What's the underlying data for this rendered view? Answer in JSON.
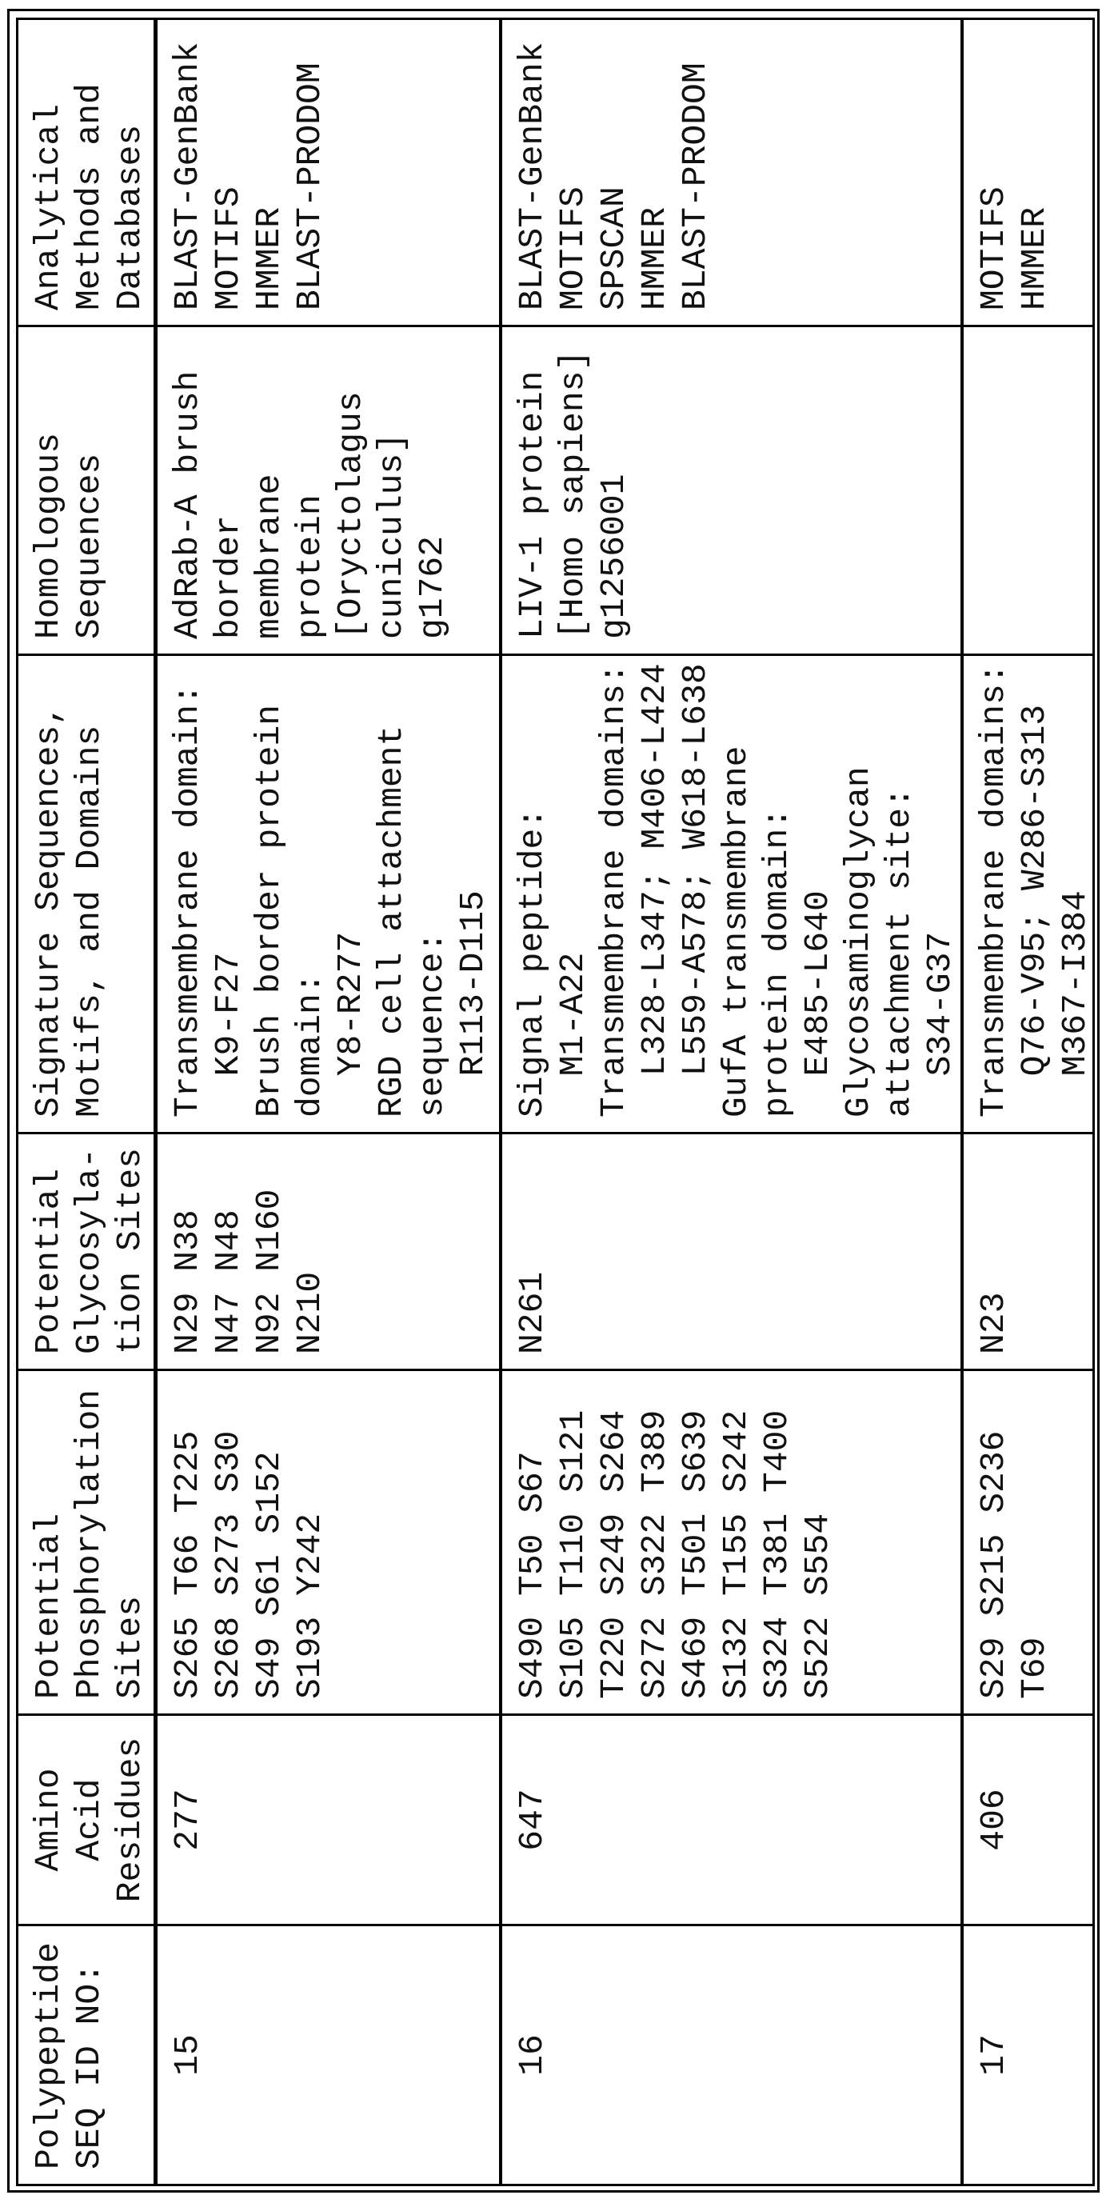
{
  "table": {
    "headers": [
      "Polypeptide\nSEQ ID NO:",
      "Amino\nAcid\nResidues",
      "Potential\nPhosphorylation\nSites",
      "Potential\nGlycosyla-\ntion Sites",
      "Signature Sequences,\nMotifs, and Domains",
      "Homologous\nSequences",
      "Analytical\nMethods and\nDatabases"
    ],
    "rows": [
      {
        "seq_id": "15",
        "residues": "277",
        "phosphorylation": "S265 T66 T225\nS268 S273 S30\nS49 S61 S152\nS193 Y242",
        "glycosylation": "N29 N38\nN47 N48\nN92 N160\nN210",
        "signatures": "Transmembrane domain:\n  K9-F27\nBrush border protein\ndomain:\n  Y8-R277\nRGD cell attachment\nsequence:\n  R113-D115",
        "homologous": "AdRab-A brush\nborder\nmembrane\nprotein\n[Oryctolagus\ncuniculus]\ng1762",
        "methods": "BLAST-GenBank\nMOTIFS\nHMMER\nBLAST-PRODOM"
      },
      {
        "seq_id": "16",
        "residues": "647",
        "phosphorylation": "S490 T50 S67\nS105 T110 S121\nT220 S249 S264\nS272 S322 T389\nS469 T501 S639\nS132 T155 S242\nS324 T381 T400\nS522 S554",
        "glycosylation": "N261",
        "signatures": "Signal peptide:\n  M1-A22\nTransmembrane domains:\n  L328-L347; M406-L424\n  L559-A578; W618-L638\nGufA transmembrane\nprotein domain:\n  E485-L640\nGlycosaminoglycan\nattachment site:\n  S34-G37",
        "homologous": "LIV-1 protein\n[Homo sapiens]\ng1256001",
        "methods": "BLAST-GenBank\nMOTIFS\nSPSCAN\nHMMER\nBLAST-PRODOM"
      },
      {
        "seq_id": "17",
        "residues": "406",
        "phosphorylation": "S29 S215 S236\nT69",
        "glycosylation": "N23",
        "signatures": "Transmembrane domains:\n  Q76-V95; W286-S313\n  M367-I384",
        "homologous": "",
        "methods": "MOTIFS\nHMMER"
      }
    ]
  }
}
